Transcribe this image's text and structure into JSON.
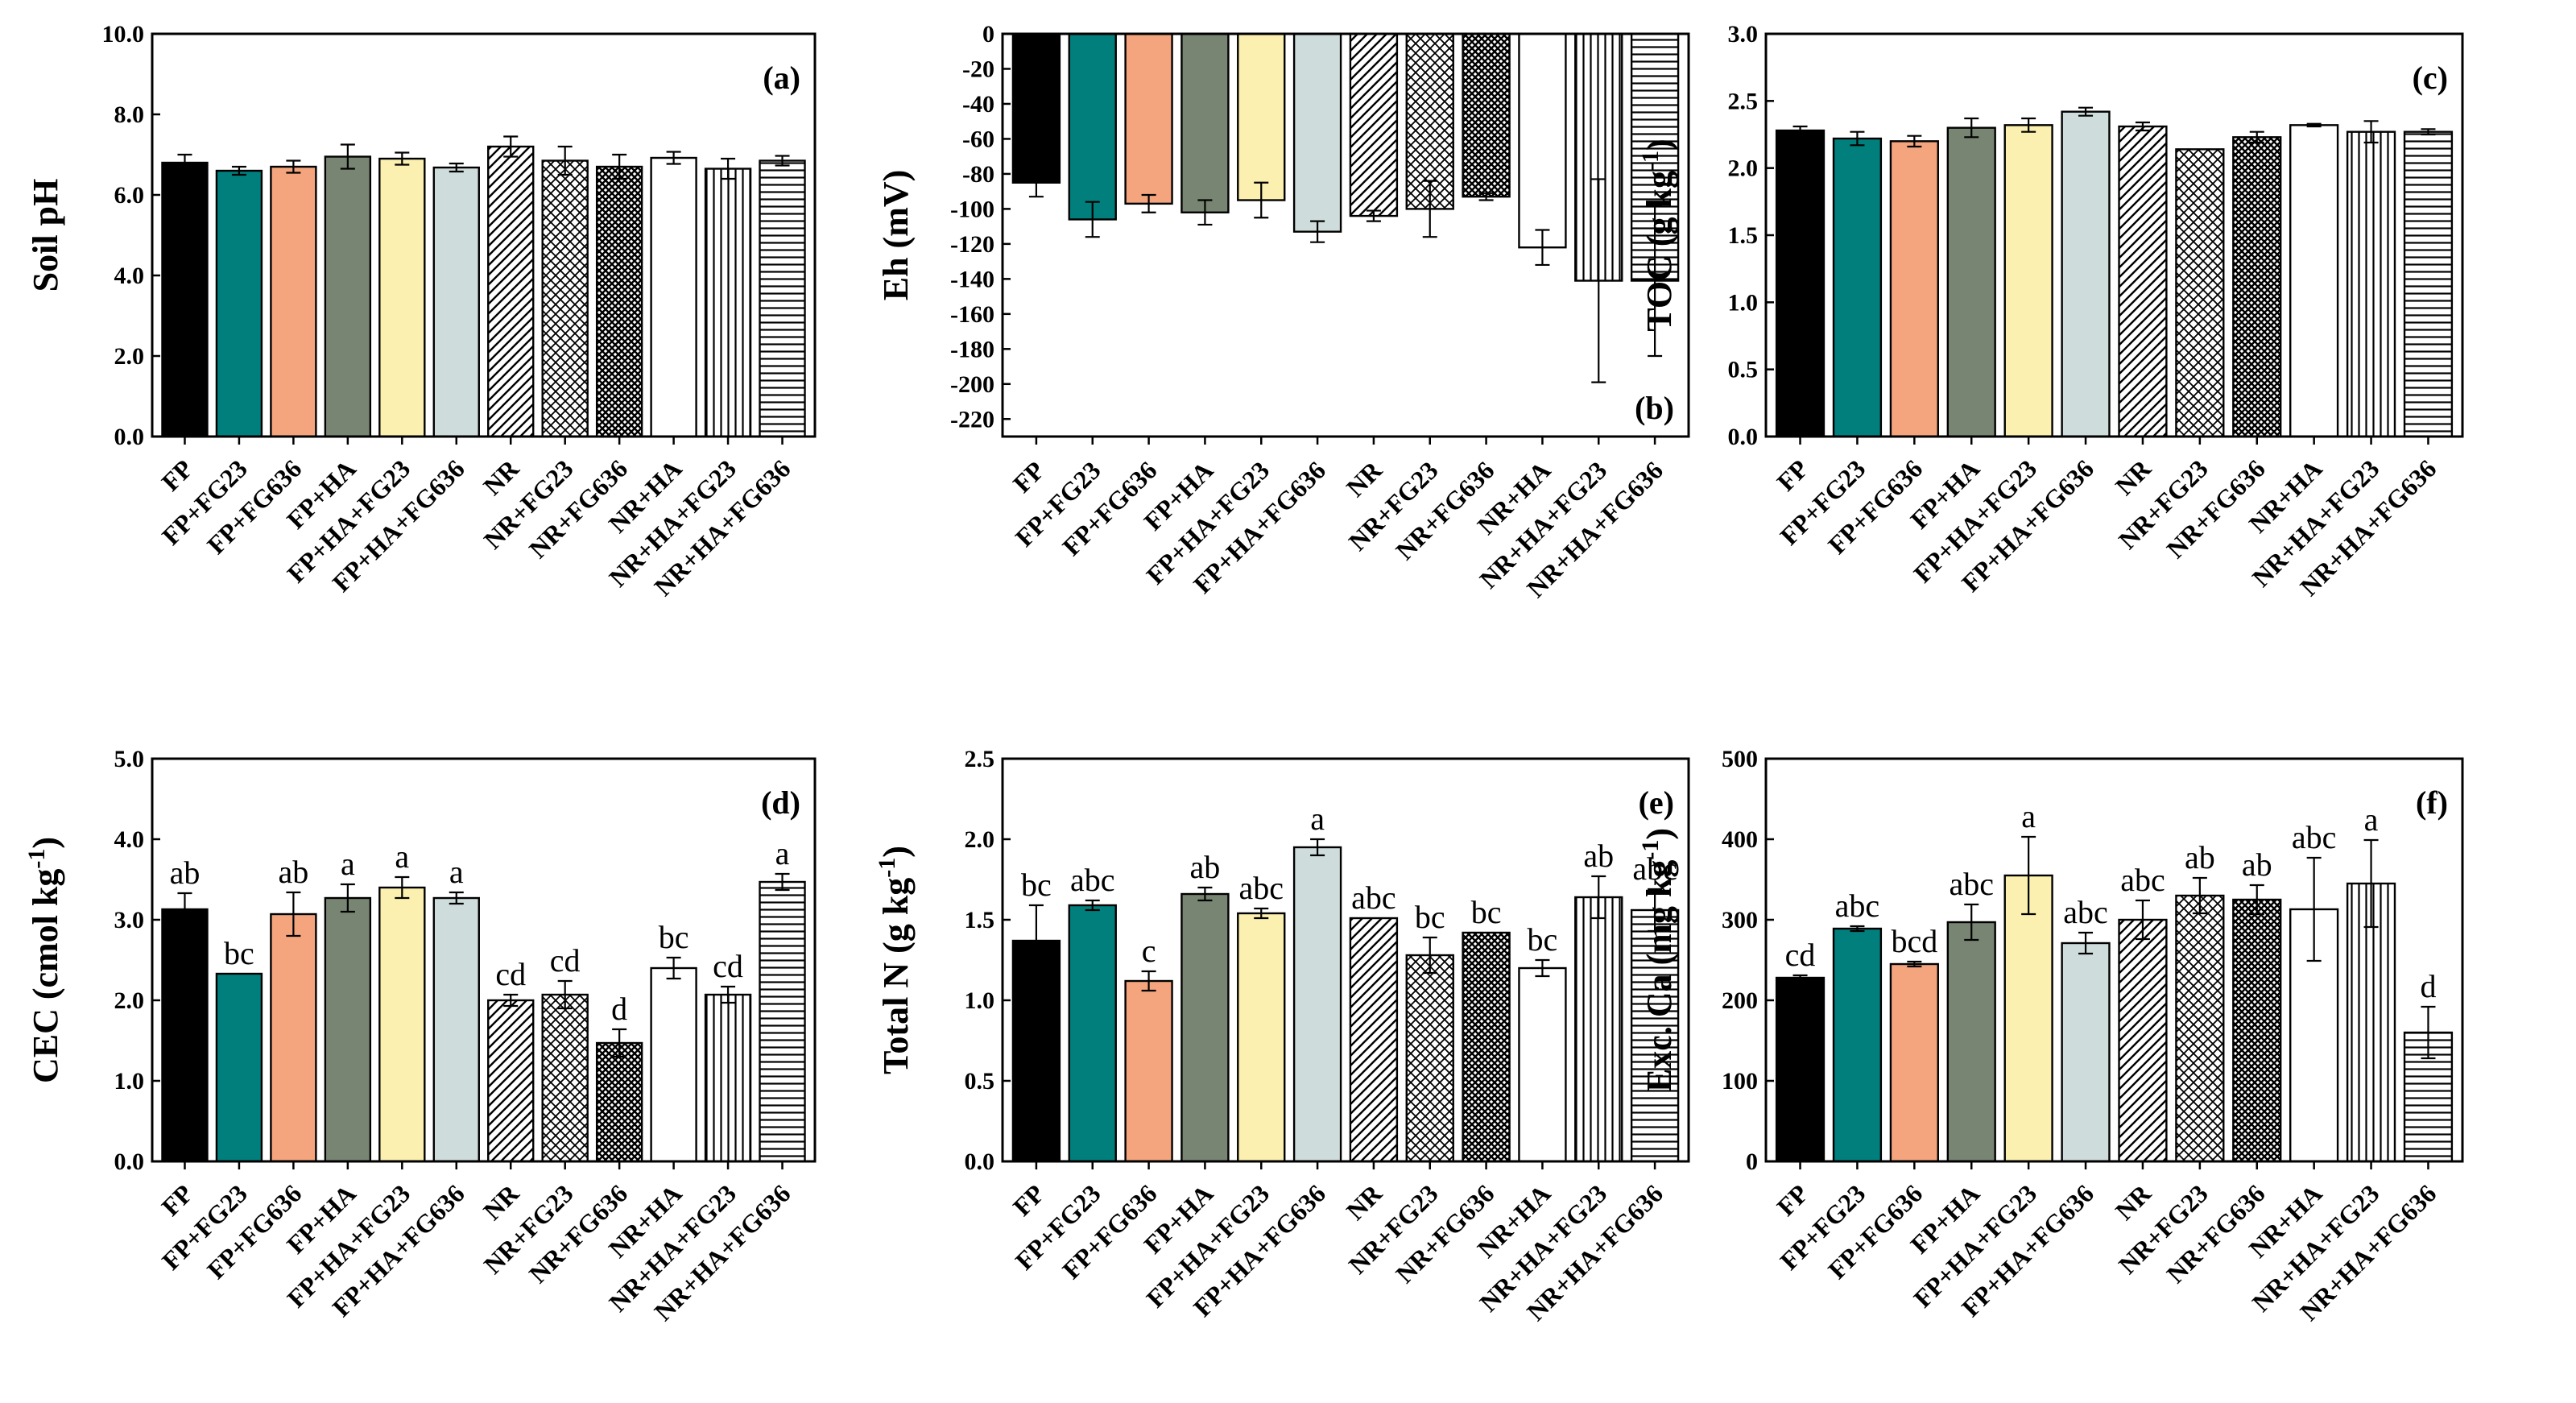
{
  "figure": {
    "categories": [
      "FP",
      "FP+FG23",
      "FP+FG636",
      "FP+HA",
      "FP+HA+FG23",
      "FP+HA+FG636",
      "NR",
      "NR+FG23",
      "NR+FG636",
      "NR+HA",
      "NR+HA+FG23",
      "NR+HA+FG636"
    ],
    "fills": [
      "#000000",
      "#007f7d",
      "#f4a57e",
      "#788572",
      "#fbf0b0",
      "#cfdcdc",
      "hatch-diag",
      "hatch-cross",
      "hatch-dots",
      "#ffffff",
      "hatch-vert",
      "hatch-horiz"
    ]
  },
  "chart_data": [
    {
      "type": "bar",
      "panel": "(a)",
      "ylabel": "Soil pH",
      "ylim": [
        0,
        10
      ],
      "ticks": [
        0,
        2,
        4,
        6,
        8,
        10
      ],
      "tick_labels": [
        "0.0",
        "2.0",
        "4.0",
        "6.0",
        "8.0",
        "10.0"
      ],
      "values": [
        6.8,
        6.6,
        6.7,
        6.95,
        6.9,
        6.68,
        7.2,
        6.85,
        6.7,
        6.92,
        6.65,
        6.85
      ],
      "errors": [
        0.2,
        0.1,
        0.15,
        0.3,
        0.15,
        0.1,
        0.25,
        0.35,
        0.3,
        0.15,
        0.25,
        0.12
      ],
      "letters": []
    },
    {
      "type": "bar",
      "panel": "(b)",
      "ylabel": "Eh (mV)",
      "ylim": [
        -230,
        0
      ],
      "ticks": [
        0,
        -20,
        -40,
        -60,
        -80,
        -100,
        -120,
        -140,
        -160,
        -180,
        -200,
        -220
      ],
      "tick_labels": [
        "0",
        "-20",
        "-40",
        "-60",
        "-80",
        "-100",
        "-120",
        "-140",
        "-160",
        "-180",
        "-200",
        "-220"
      ],
      "values": [
        -85,
        -106,
        -97,
        -102,
        -95,
        -113,
        -104,
        -100,
        -93,
        -122,
        -141,
        -141
      ],
      "errors": [
        8,
        10,
        5,
        7,
        10,
        6,
        3,
        16,
        2,
        10,
        58,
        43
      ],
      "letters": []
    },
    {
      "type": "bar",
      "panel": "(c)",
      "ylabel": "TOC (g kg-1)",
      "ylim": [
        0,
        3
      ],
      "ticks": [
        0,
        0.5,
        1,
        1.5,
        2,
        2.5,
        3
      ],
      "tick_labels": [
        "0.0",
        "0.5",
        "1.0",
        "1.5",
        "2.0",
        "2.5",
        "3.0"
      ],
      "values": [
        2.28,
        2.22,
        2.2,
        2.3,
        2.32,
        2.42,
        2.31,
        2.14,
        2.23,
        2.32,
        2.27,
        2.27
      ],
      "errors": [
        0.03,
        0.05,
        0.04,
        0.07,
        0.05,
        0.03,
        0.03,
        0.0,
        0.04,
        0.01,
        0.08,
        0.02
      ],
      "letters": []
    },
    {
      "type": "bar",
      "panel": "(d)",
      "ylabel": "CEC (cmol kg-1)",
      "ylim": [
        0,
        5
      ],
      "ticks": [
        0,
        1,
        2,
        3,
        4,
        5
      ],
      "tick_labels": [
        "0.0",
        "1.0",
        "2.0",
        "3.0",
        "4.0",
        "5.0"
      ],
      "values": [
        3.13,
        2.33,
        3.07,
        3.27,
        3.4,
        3.27,
        2.0,
        2.07,
        1.47,
        2.4,
        2.07,
        3.47
      ],
      "errors": [
        0.2,
        0.0,
        0.27,
        0.17,
        0.13,
        0.07,
        0.07,
        0.17,
        0.17,
        0.13,
        0.1,
        0.1
      ],
      "letters": [
        "ab",
        "bc",
        "ab",
        "a",
        "a",
        "a",
        "cd",
        "cd",
        "d",
        "bc",
        "cd",
        "a"
      ]
    },
    {
      "type": "bar",
      "panel": "(e)",
      "ylabel": "Total N (g kg-1)",
      "ylim": [
        0,
        2.5
      ],
      "ticks": [
        0,
        0.5,
        1,
        1.5,
        2,
        2.5
      ],
      "tick_labels": [
        "0.0",
        "0.5",
        "1.0",
        "1.5",
        "2.0",
        "2.5"
      ],
      "values": [
        1.37,
        1.59,
        1.12,
        1.66,
        1.54,
        1.95,
        1.51,
        1.28,
        1.42,
        1.2,
        1.64,
        1.56
      ],
      "errors": [
        0.22,
        0.03,
        0.06,
        0.04,
        0.03,
        0.05,
        0.0,
        0.11,
        0.0,
        0.05,
        0.13,
        0.13
      ],
      "letters": [
        "bc",
        "abc",
        "c",
        "ab",
        "abc",
        "a",
        "abc",
        "bc",
        "bc",
        "bc",
        "ab",
        "abc"
      ]
    },
    {
      "type": "bar",
      "panel": "(f)",
      "ylabel": "Exc. Ca (mg kg-1)",
      "ylim": [
        0,
        500
      ],
      "ticks": [
        0,
        100,
        200,
        300,
        400,
        500
      ],
      "tick_labels": [
        "0",
        "100",
        "200",
        "300",
        "400",
        "500"
      ],
      "values": [
        228,
        289,
        245,
        297,
        355,
        271,
        300,
        330,
        325,
        313,
        345,
        160
      ],
      "errors": [
        3,
        3,
        3,
        22,
        48,
        13,
        24,
        22,
        18,
        64,
        54,
        32
      ],
      "letters": [
        "cd",
        "abc",
        "bcd",
        "abc",
        "a",
        "abc",
        "abc",
        "ab",
        "ab",
        "abc",
        "a",
        "d"
      ]
    }
  ]
}
